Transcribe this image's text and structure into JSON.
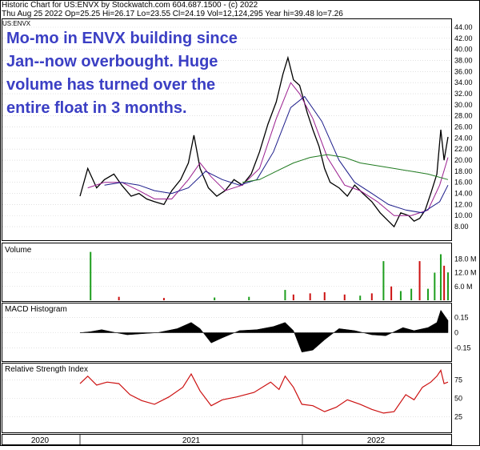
{
  "header": {
    "line1": "Historic Chart for US:ENVX by Stockwatch.com 604.687.1500 - (c) 2022",
    "line2": "Thu Aug 25 2022   Op=25.25   Hi=26.17   Lo=23.55   Cl=24.19   Vol=12,124,295   Year hi=39.48   lo=7.26",
    "ticker_tag": "US:ENVX"
  },
  "annotation": {
    "lines": [
      "Mo-mo in ENVX building since",
      "Jan--now overbought. Huge",
      "volume has turned over the",
      "entire float in 3 months."
    ],
    "color": "#3b3fc4"
  },
  "panels": {
    "volume_title": "Volume",
    "macd_title": "MACD Histogram",
    "rsi_title": "Relative Strength Index"
  },
  "x_axis": {
    "labels": [
      "2020",
      "2021",
      "2022"
    ]
  },
  "colors": {
    "price": "#000000",
    "ma_short": "#9b1f8f",
    "ma_mid": "#1c1c8a",
    "ma_long": "#1f7a1f",
    "vol_up": "#1e9e1e",
    "vol_down": "#cc1111",
    "macd": "#000000",
    "rsi": "#cc1111"
  },
  "chart_data": [
    {
      "type": "line",
      "title": "Historic Chart for US:ENVX",
      "y_ticks": [
        "44.00",
        "42.00",
        "40.00",
        "38.00",
        "36.00",
        "34.00",
        "32.00",
        "30.00",
        "28.00",
        "26.00",
        "24.00",
        "22.00",
        "20.00",
        "18.00",
        "16.00",
        "14.00",
        "12.00",
        "10.00",
        "8.00"
      ],
      "ylim": [
        7,
        44
      ],
      "xlim": [
        "2020-11-01",
        "2022-08-25"
      ],
      "series": [
        {
          "points": [
            [
              "2020-11-01",
              13.5
            ],
            [
              "2020-11-15",
              18.5
            ],
            [
              "2020-12-01",
              15.0
            ],
            [
              "2020-12-15",
              16.5
            ],
            [
              "2021-01-01",
              17.5
            ],
            [
              "2021-01-15",
              15.5
            ],
            [
              "2021-02-01",
              13.5
            ],
            [
              "2021-02-15",
              14.0
            ],
            [
              "2021-03-01",
              13.0
            ],
            [
              "2021-03-15",
              12.5
            ],
            [
              "2021-04-01",
              12.0
            ],
            [
              "2021-04-15",
              14.5
            ],
            [
              "2021-05-01",
              16.5
            ],
            [
              "2021-05-15",
              19.5
            ],
            [
              "2021-05-25",
              24.5
            ],
            [
              "2021-06-05",
              18.5
            ],
            [
              "2021-06-20",
              15.0
            ],
            [
              "2021-07-05",
              13.5
            ],
            [
              "2021-07-20",
              14.5
            ],
            [
              "2021-08-05",
              16.5
            ],
            [
              "2021-08-20",
              15.5
            ],
            [
              "2021-09-05",
              17.5
            ],
            [
              "2021-09-20",
              21.5
            ],
            [
              "2021-10-05",
              26.5
            ],
            [
              "2021-10-20",
              30.5
            ],
            [
              "2021-11-01",
              35.5
            ],
            [
              "2021-11-10",
              38.5
            ],
            [
              "2021-11-20",
              34.5
            ],
            [
              "2021-12-01",
              33.5
            ],
            [
              "2021-12-15",
              28.5
            ],
            [
              "2021-12-25",
              25.5
            ],
            [
              "2022-01-05",
              22.5
            ],
            [
              "2022-01-15",
              18.5
            ],
            [
              "2022-01-25",
              16.0
            ],
            [
              "2022-02-10",
              15.0
            ],
            [
              "2022-02-25",
              13.5
            ],
            [
              "2022-03-10",
              15.5
            ],
            [
              "2022-03-25",
              14.0
            ],
            [
              "2022-04-10",
              12.5
            ],
            [
              "2022-04-25",
              10.5
            ],
            [
              "2022-05-10",
              9.0
            ],
            [
              "2022-05-20",
              8.0
            ],
            [
              "2022-06-01",
              10.5
            ],
            [
              "2022-06-15",
              10.0
            ],
            [
              "2022-06-25",
              9.0
            ],
            [
              "2022-07-05",
              9.5
            ],
            [
              "2022-07-15",
              11.0
            ],
            [
              "2022-07-25",
              14.0
            ],
            [
              "2022-08-05",
              17.5
            ],
            [
              "2022-08-12",
              25.5
            ],
            [
              "2022-08-18",
              20.0
            ],
            [
              "2022-08-25",
              24.2
            ]
          ]
        },
        {
          "points": [
            [
              "2020-11-15",
              15.0
            ],
            [
              "2020-12-15",
              16.0
            ],
            [
              "2021-01-15",
              16.0
            ],
            [
              "2021-02-15",
              14.5
            ],
            [
              "2021-03-15",
              13.0
            ],
            [
              "2021-04-15",
              13.0
            ],
            [
              "2021-05-15",
              16.5
            ],
            [
              "2021-06-05",
              19.5
            ],
            [
              "2021-06-25",
              17.0
            ],
            [
              "2021-07-20",
              14.5
            ],
            [
              "2021-08-20",
              15.5
            ],
            [
              "2021-09-20",
              18.5
            ],
            [
              "2021-10-20",
              27.5
            ],
            [
              "2021-11-15",
              34.0
            ],
            [
              "2021-12-01",
              32.0
            ],
            [
              "2021-12-25",
              27.5
            ],
            [
              "2022-01-20",
              20.5
            ],
            [
              "2022-02-20",
              15.5
            ],
            [
              "2022-03-20",
              14.5
            ],
            [
              "2022-04-20",
              12.5
            ],
            [
              "2022-05-20",
              10.0
            ],
            [
              "2022-06-20",
              10.0
            ],
            [
              "2022-07-20",
              11.0
            ],
            [
              "2022-08-10",
              15.5
            ],
            [
              "2022-08-25",
              20.5
            ]
          ]
        },
        {
          "points": [
            [
              "2020-12-15",
              15.5
            ],
            [
              "2021-01-15",
              16.0
            ],
            [
              "2021-02-15",
              15.5
            ],
            [
              "2021-03-15",
              14.5
            ],
            [
              "2021-04-15",
              14.0
            ],
            [
              "2021-05-15",
              15.0
            ],
            [
              "2021-06-15",
              18.0
            ],
            [
              "2021-07-15",
              16.5
            ],
            [
              "2021-08-15",
              15.5
            ],
            [
              "2021-09-15",
              16.5
            ],
            [
              "2021-10-15",
              21.5
            ],
            [
              "2021-11-15",
              29.5
            ],
            [
              "2021-12-10",
              31.5
            ],
            [
              "2022-01-10",
              27.0
            ],
            [
              "2022-02-10",
              20.0
            ],
            [
              "2022-03-10",
              16.0
            ],
            [
              "2022-04-10",
              14.0
            ],
            [
              "2022-05-10",
              12.0
            ],
            [
              "2022-06-10",
              11.0
            ],
            [
              "2022-07-10",
              10.5
            ],
            [
              "2022-08-10",
              12.5
            ],
            [
              "2022-08-25",
              15.5
            ]
          ]
        },
        {
          "points": [
            [
              "2021-08-20",
              16.0
            ],
            [
              "2021-09-20",
              16.5
            ],
            [
              "2021-10-20",
              18.0
            ],
            [
              "2021-11-20",
              19.5
            ],
            [
              "2021-12-20",
              20.5
            ],
            [
              "2022-01-20",
              21.0
            ],
            [
              "2022-02-20",
              20.5
            ],
            [
              "2022-03-20",
              19.5
            ],
            [
              "2022-04-20",
              19.0
            ],
            [
              "2022-05-20",
              18.5
            ],
            [
              "2022-06-20",
              18.0
            ],
            [
              "2022-07-20",
              17.5
            ],
            [
              "2022-08-25",
              16.5
            ]
          ]
        }
      ]
    },
    {
      "type": "bar",
      "title": "Volume",
      "y_ticks": [
        "18.0 M",
        "12.0 M",
        "6.0 M"
      ],
      "ylim": [
        0,
        24
      ],
      "series": [
        {
          "bars": [
            [
              "2020-11-20",
              21.0,
              "up"
            ],
            [
              "2021-01-10",
              1.5,
              "down"
            ],
            [
              "2021-04-01",
              1.0,
              "down"
            ],
            [
              "2021-07-01",
              1.2,
              "up"
            ],
            [
              "2021-09-01",
              1.5,
              "up"
            ],
            [
              "2021-11-05",
              4.5,
              "up"
            ],
            [
              "2021-11-20",
              2.5,
              "down"
            ],
            [
              "2021-12-20",
              3.0,
              "down"
            ],
            [
              "2022-01-15",
              3.5,
              "down"
            ],
            [
              "2022-02-20",
              2.5,
              "down"
            ],
            [
              "2022-03-20",
              2.0,
              "up"
            ],
            [
              "2022-04-10",
              3.0,
              "down"
            ],
            [
              "2022-05-01",
              17.0,
              "up"
            ],
            [
              "2022-05-15",
              6.0,
              "down"
            ],
            [
              "2022-06-01",
              4.0,
              "up"
            ],
            [
              "2022-06-20",
              5.0,
              "up"
            ],
            [
              "2022-07-05",
              17.0,
              "down"
            ],
            [
              "2022-07-20",
              5.0,
              "up"
            ],
            [
              "2022-08-01",
              12.0,
              "up"
            ],
            [
              "2022-08-12",
              20.0,
              "up"
            ],
            [
              "2022-08-18",
              15.0,
              "down"
            ],
            [
              "2022-08-25",
              12.1,
              "up"
            ]
          ]
        }
      ]
    },
    {
      "type": "area",
      "title": "MACD Histogram",
      "y_ticks": [
        "0.15",
        "0",
        "-0.15"
      ],
      "ylim": [
        -0.27,
        0.27
      ],
      "series": [
        {
          "points": [
            [
              "2020-11-01",
              0.0
            ],
            [
              "2020-11-20",
              0.01
            ],
            [
              "2020-12-10",
              0.03
            ],
            [
              "2021-01-05",
              0.0
            ],
            [
              "2021-01-25",
              -0.02
            ],
            [
              "2021-02-20",
              -0.01
            ],
            [
              "2021-03-20",
              0.0
            ],
            [
              "2021-04-25",
              0.04
            ],
            [
              "2021-05-20",
              0.1
            ],
            [
              "2021-06-05",
              0.04
            ],
            [
              "2021-06-25",
              -0.1
            ],
            [
              "2021-07-15",
              -0.05
            ],
            [
              "2021-08-15",
              0.02
            ],
            [
              "2021-09-15",
              0.03
            ],
            [
              "2021-10-15",
              0.06
            ],
            [
              "2021-11-05",
              0.1
            ],
            [
              "2021-11-20",
              0.02
            ],
            [
              "2021-12-05",
              -0.19
            ],
            [
              "2021-12-25",
              -0.17
            ],
            [
              "2022-01-15",
              -0.07
            ],
            [
              "2022-02-10",
              0.04
            ],
            [
              "2022-03-10",
              0.02
            ],
            [
              "2022-04-10",
              -0.02
            ],
            [
              "2022-05-05",
              -0.03
            ],
            [
              "2022-06-05",
              0.05
            ],
            [
              "2022-06-25",
              0.02
            ],
            [
              "2022-07-20",
              0.05
            ],
            [
              "2022-08-05",
              0.1
            ],
            [
              "2022-08-12",
              0.22
            ],
            [
              "2022-08-25",
              0.12
            ]
          ]
        }
      ]
    },
    {
      "type": "line",
      "title": "Relative Strength Index",
      "y_ticks": [
        "75",
        "50",
        "25"
      ],
      "ylim": [
        5,
        95
      ],
      "series": [
        {
          "points": [
            [
              "2020-11-01",
              70
            ],
            [
              "2020-11-15",
              80
            ],
            [
              "2020-12-01",
              68
            ],
            [
              "2020-12-20",
              72
            ],
            [
              "2021-01-10",
              70
            ],
            [
              "2021-01-30",
              55
            ],
            [
              "2021-02-20",
              47
            ],
            [
              "2021-03-15",
              42
            ],
            [
              "2021-04-10",
              52
            ],
            [
              "2021-05-05",
              65
            ],
            [
              "2021-05-20",
              83
            ],
            [
              "2021-06-05",
              60
            ],
            [
              "2021-06-25",
              40
            ],
            [
              "2021-07-15",
              48
            ],
            [
              "2021-08-10",
              52
            ],
            [
              "2021-09-10",
              58
            ],
            [
              "2021-10-10",
              72
            ],
            [
              "2021-10-25",
              62
            ],
            [
              "2021-11-05",
              80
            ],
            [
              "2021-11-20",
              65
            ],
            [
              "2021-12-05",
              42
            ],
            [
              "2021-12-25",
              40
            ],
            [
              "2022-01-15",
              32
            ],
            [
              "2022-02-05",
              38
            ],
            [
              "2022-02-25",
              48
            ],
            [
              "2022-03-20",
              42
            ],
            [
              "2022-04-10",
              35
            ],
            [
              "2022-05-01",
              30
            ],
            [
              "2022-05-20",
              32
            ],
            [
              "2022-06-10",
              55
            ],
            [
              "2022-06-25",
              48
            ],
            [
              "2022-07-10",
              65
            ],
            [
              "2022-07-25",
              72
            ],
            [
              "2022-08-05",
              80
            ],
            [
              "2022-08-12",
              88
            ],
            [
              "2022-08-18",
              70
            ],
            [
              "2022-08-25",
              72
            ]
          ]
        }
      ]
    }
  ]
}
